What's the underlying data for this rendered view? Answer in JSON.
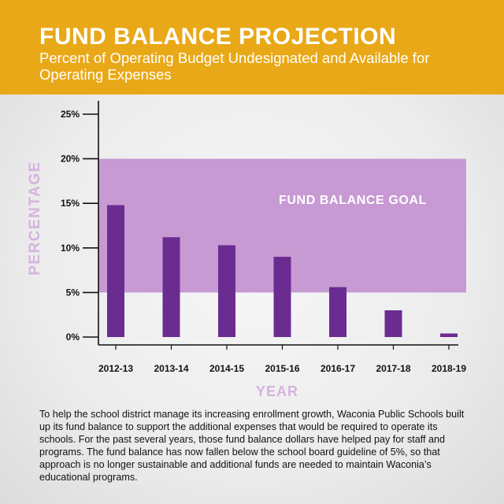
{
  "header": {
    "title": "FUND BALANCE PROJECTION",
    "subtitle": "Percent of Operating Budget Undesignated and Available for Operating Expenses"
  },
  "colors": {
    "banner": "#e9a817",
    "bar": "#6a2c91",
    "goal_band": "#c79ad3",
    "axis_label": "#d6b3df"
  },
  "chart_data": {
    "type": "bar",
    "title": "FUND BALANCE PROJECTION",
    "subtitle": "Percent of Operating Budget Undesignated and Available for Operating Expenses",
    "xlabel": "YEAR",
    "ylabel": "PERCENTAGE",
    "categories": [
      "2012-13",
      "2013-14",
      "2014-15",
      "2015-16",
      "2016-17",
      "2017-18",
      "2018-19"
    ],
    "values": [
      14.8,
      11.2,
      10.3,
      9.0,
      5.6,
      3.0,
      0.4
    ],
    "ylim": [
      0,
      25
    ],
    "yticks": [
      0,
      5,
      10,
      15,
      20,
      25
    ],
    "ytick_labels": [
      "0%",
      "5%",
      "10%",
      "15%",
      "20%",
      "25%"
    ],
    "goal_band": {
      "label": "FUND BALANCE GOAL",
      "from": 5,
      "to": 20
    },
    "grid": false,
    "legend": "none"
  },
  "footer": {
    "text": "To help the school district manage its increasing enrollment growth, Waconia Public Schools built up its fund balance to support the additional expenses that would be required to operate its schools. For the past several years, those fund balance dollars have helped pay for staff and programs. The fund balance has now fallen below the school board guideline of 5%, so that approach is no longer sustainable and additional funds are needed to maintain Waconia’s educational programs."
  }
}
